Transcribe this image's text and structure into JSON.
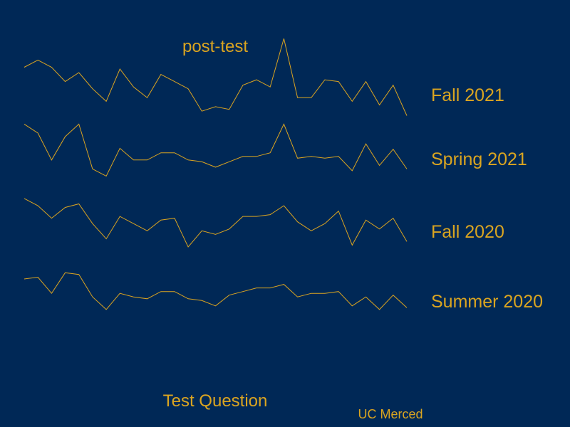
{
  "chart_data": {
    "type": "line",
    "title": "post-test",
    "xlabel": "Test Question",
    "caption": "UC Merced",
    "x": [
      1,
      2,
      3,
      4,
      5,
      6,
      7,
      8,
      9,
      10,
      11,
      12,
      13,
      14,
      15,
      16,
      17,
      18,
      19,
      20,
      21,
      22,
      23,
      24,
      25,
      26,
      27,
      28,
      29
    ],
    "ylim": [
      0,
      1
    ],
    "line_color": "#DAA520",
    "background_color": "#002856",
    "series": [
      {
        "name": "Fall 2021",
        "values": [
          0.52,
          0.6,
          0.52,
          0.36,
          0.46,
          0.28,
          0.14,
          0.5,
          0.3,
          0.18,
          0.44,
          0.36,
          0.28,
          0.03,
          0.08,
          0.05,
          0.32,
          0.38,
          0.3,
          0.84,
          0.18,
          0.18,
          0.38,
          0.36,
          0.14,
          0.36,
          0.1,
          0.32,
          -0.02
        ]
      },
      {
        "name": "Spring 2021",
        "values": [
          0.6,
          0.5,
          0.2,
          0.46,
          0.6,
          0.1,
          0.02,
          0.33,
          0.2,
          0.2,
          0.28,
          0.28,
          0.2,
          0.18,
          0.12,
          0.18,
          0.24,
          0.24,
          0.28,
          0.6,
          0.22,
          0.24,
          0.22,
          0.24,
          0.08,
          0.38,
          0.14,
          0.32,
          0.1
        ]
      },
      {
        "name": "Fall 2020",
        "values": [
          0.58,
          0.5,
          0.36,
          0.48,
          0.52,
          0.3,
          0.13,
          0.38,
          0.3,
          0.22,
          0.34,
          0.36,
          0.04,
          0.22,
          0.18,
          0.24,
          0.38,
          0.38,
          0.4,
          0.5,
          0.32,
          0.22,
          0.3,
          0.44,
          0.06,
          0.34,
          0.24,
          0.36,
          0.1
        ]
      },
      {
        "name": "Summer 2020",
        "values": [
          0.46,
          0.48,
          0.3,
          0.53,
          0.51,
          0.26,
          0.12,
          0.3,
          0.26,
          0.24,
          0.32,
          0.32,
          0.24,
          0.22,
          0.16,
          0.28,
          0.32,
          0.36,
          0.36,
          0.4,
          0.26,
          0.3,
          0.3,
          0.32,
          0.16,
          0.26,
          0.12,
          0.28,
          0.14
        ]
      }
    ]
  }
}
